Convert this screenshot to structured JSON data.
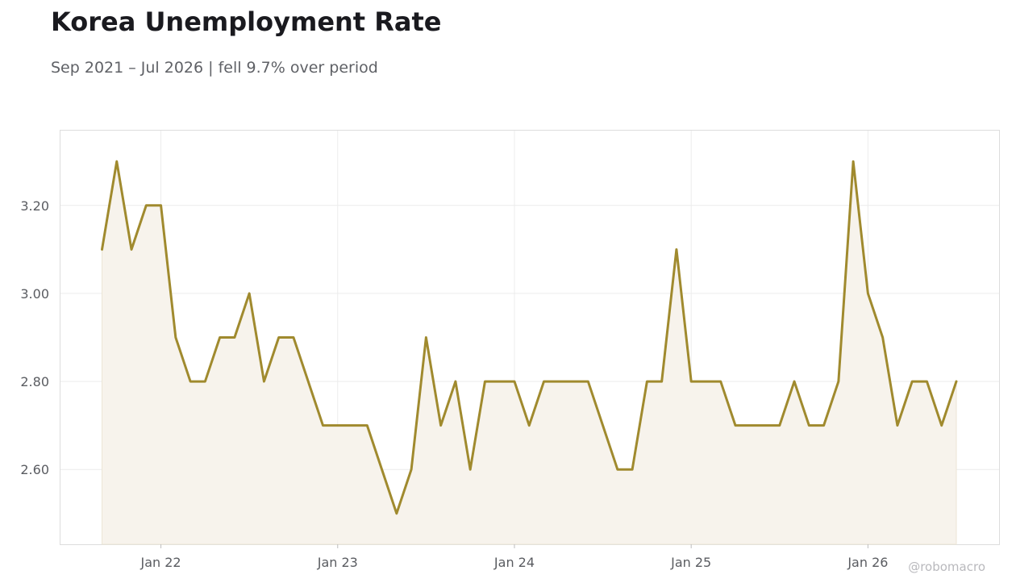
{
  "chart_data": {
    "type": "area",
    "title": "Korea Unemployment Rate",
    "subtitle": "Sep 2021 – Jul 2026 | fell 9.7% over period",
    "watermark": "@robomacro",
    "ylim": [
      2.43,
      3.37
    ],
    "y_ticks": [
      2.6,
      2.8,
      3.0,
      3.2
    ],
    "y_tick_labels": [
      "2.60",
      "2.80",
      "3.00",
      "3.20"
    ],
    "x_ticks": [
      "2022-01",
      "2023-01",
      "2024-01",
      "2025-01",
      "2026-01"
    ],
    "x_tick_labels": [
      "Jan 22",
      "Jan 23",
      "Jan 24",
      "Jan 25",
      "Jan 26"
    ],
    "grid": true,
    "colors": {
      "line": "#a08a2e",
      "fill": "#f7f3ec",
      "grid": "#ececec",
      "frame": "#dddddd"
    },
    "series": [
      {
        "x": [
          "2021-09",
          "2021-10",
          "2021-11",
          "2021-12",
          "2022-01",
          "2022-02",
          "2022-03",
          "2022-04",
          "2022-05",
          "2022-06",
          "2022-07",
          "2022-08",
          "2022-09",
          "2022-10",
          "2022-11",
          "2022-12",
          "2023-01",
          "2023-02",
          "2023-03",
          "2023-04",
          "2023-05",
          "2023-06",
          "2023-07",
          "2023-08",
          "2023-09",
          "2023-10",
          "2023-11",
          "2023-12",
          "2024-01",
          "2024-02",
          "2024-03",
          "2024-04",
          "2024-05",
          "2024-06",
          "2024-07",
          "2024-08",
          "2024-09",
          "2024-10",
          "2024-11",
          "2024-12",
          "2025-01",
          "2025-02",
          "2025-03",
          "2025-04",
          "2025-05",
          "2025-06",
          "2025-07",
          "2025-08",
          "2025-09",
          "2025-10",
          "2025-11",
          "2025-12",
          "2026-01",
          "2026-02",
          "2026-03",
          "2026-04",
          "2026-05",
          "2026-06",
          "2026-07"
        ],
        "values": [
          3.1,
          3.3,
          3.1,
          3.2,
          3.2,
          2.9,
          2.8,
          2.8,
          2.9,
          2.9,
          3.0,
          2.8,
          2.9,
          2.9,
          2.8,
          2.7,
          2.7,
          2.7,
          2.7,
          2.6,
          2.5,
          2.6,
          2.9,
          2.7,
          2.8,
          2.6,
          2.8,
          2.8,
          2.8,
          2.7,
          2.8,
          2.8,
          2.8,
          2.8,
          2.7,
          2.6,
          2.6,
          2.8,
          2.8,
          3.1,
          2.8,
          2.8,
          2.8,
          2.7,
          2.7,
          2.7,
          2.7,
          2.8,
          2.7,
          2.7,
          2.8,
          3.3,
          3.0,
          2.9,
          2.7,
          2.8,
          2.8,
          2.7,
          2.8
        ]
      }
    ]
  }
}
